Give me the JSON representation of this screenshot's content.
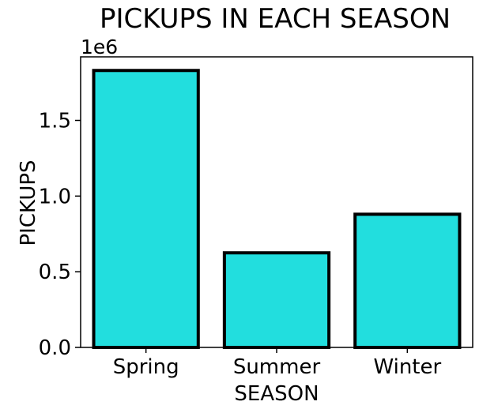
{
  "chart_data": {
    "type": "bar",
    "title": "PICKUPS IN EACH SEASON",
    "xlabel": "SEASON",
    "ylabel": "PICKUPS",
    "offset_label": "1e6",
    "categories": [
      "Spring",
      "Summer",
      "Winter"
    ],
    "values": [
      1830000,
      625000,
      880000
    ],
    "ylim": [
      0,
      1920000
    ],
    "y_ticks": [
      0,
      500000,
      1000000,
      1500000
    ],
    "y_tick_labels": [
      "0.0",
      "0.5",
      "1.0",
      "1.5"
    ],
    "grid": false,
    "legend": "none",
    "bar_color": "#22dede",
    "edge_color": "#000000"
  }
}
